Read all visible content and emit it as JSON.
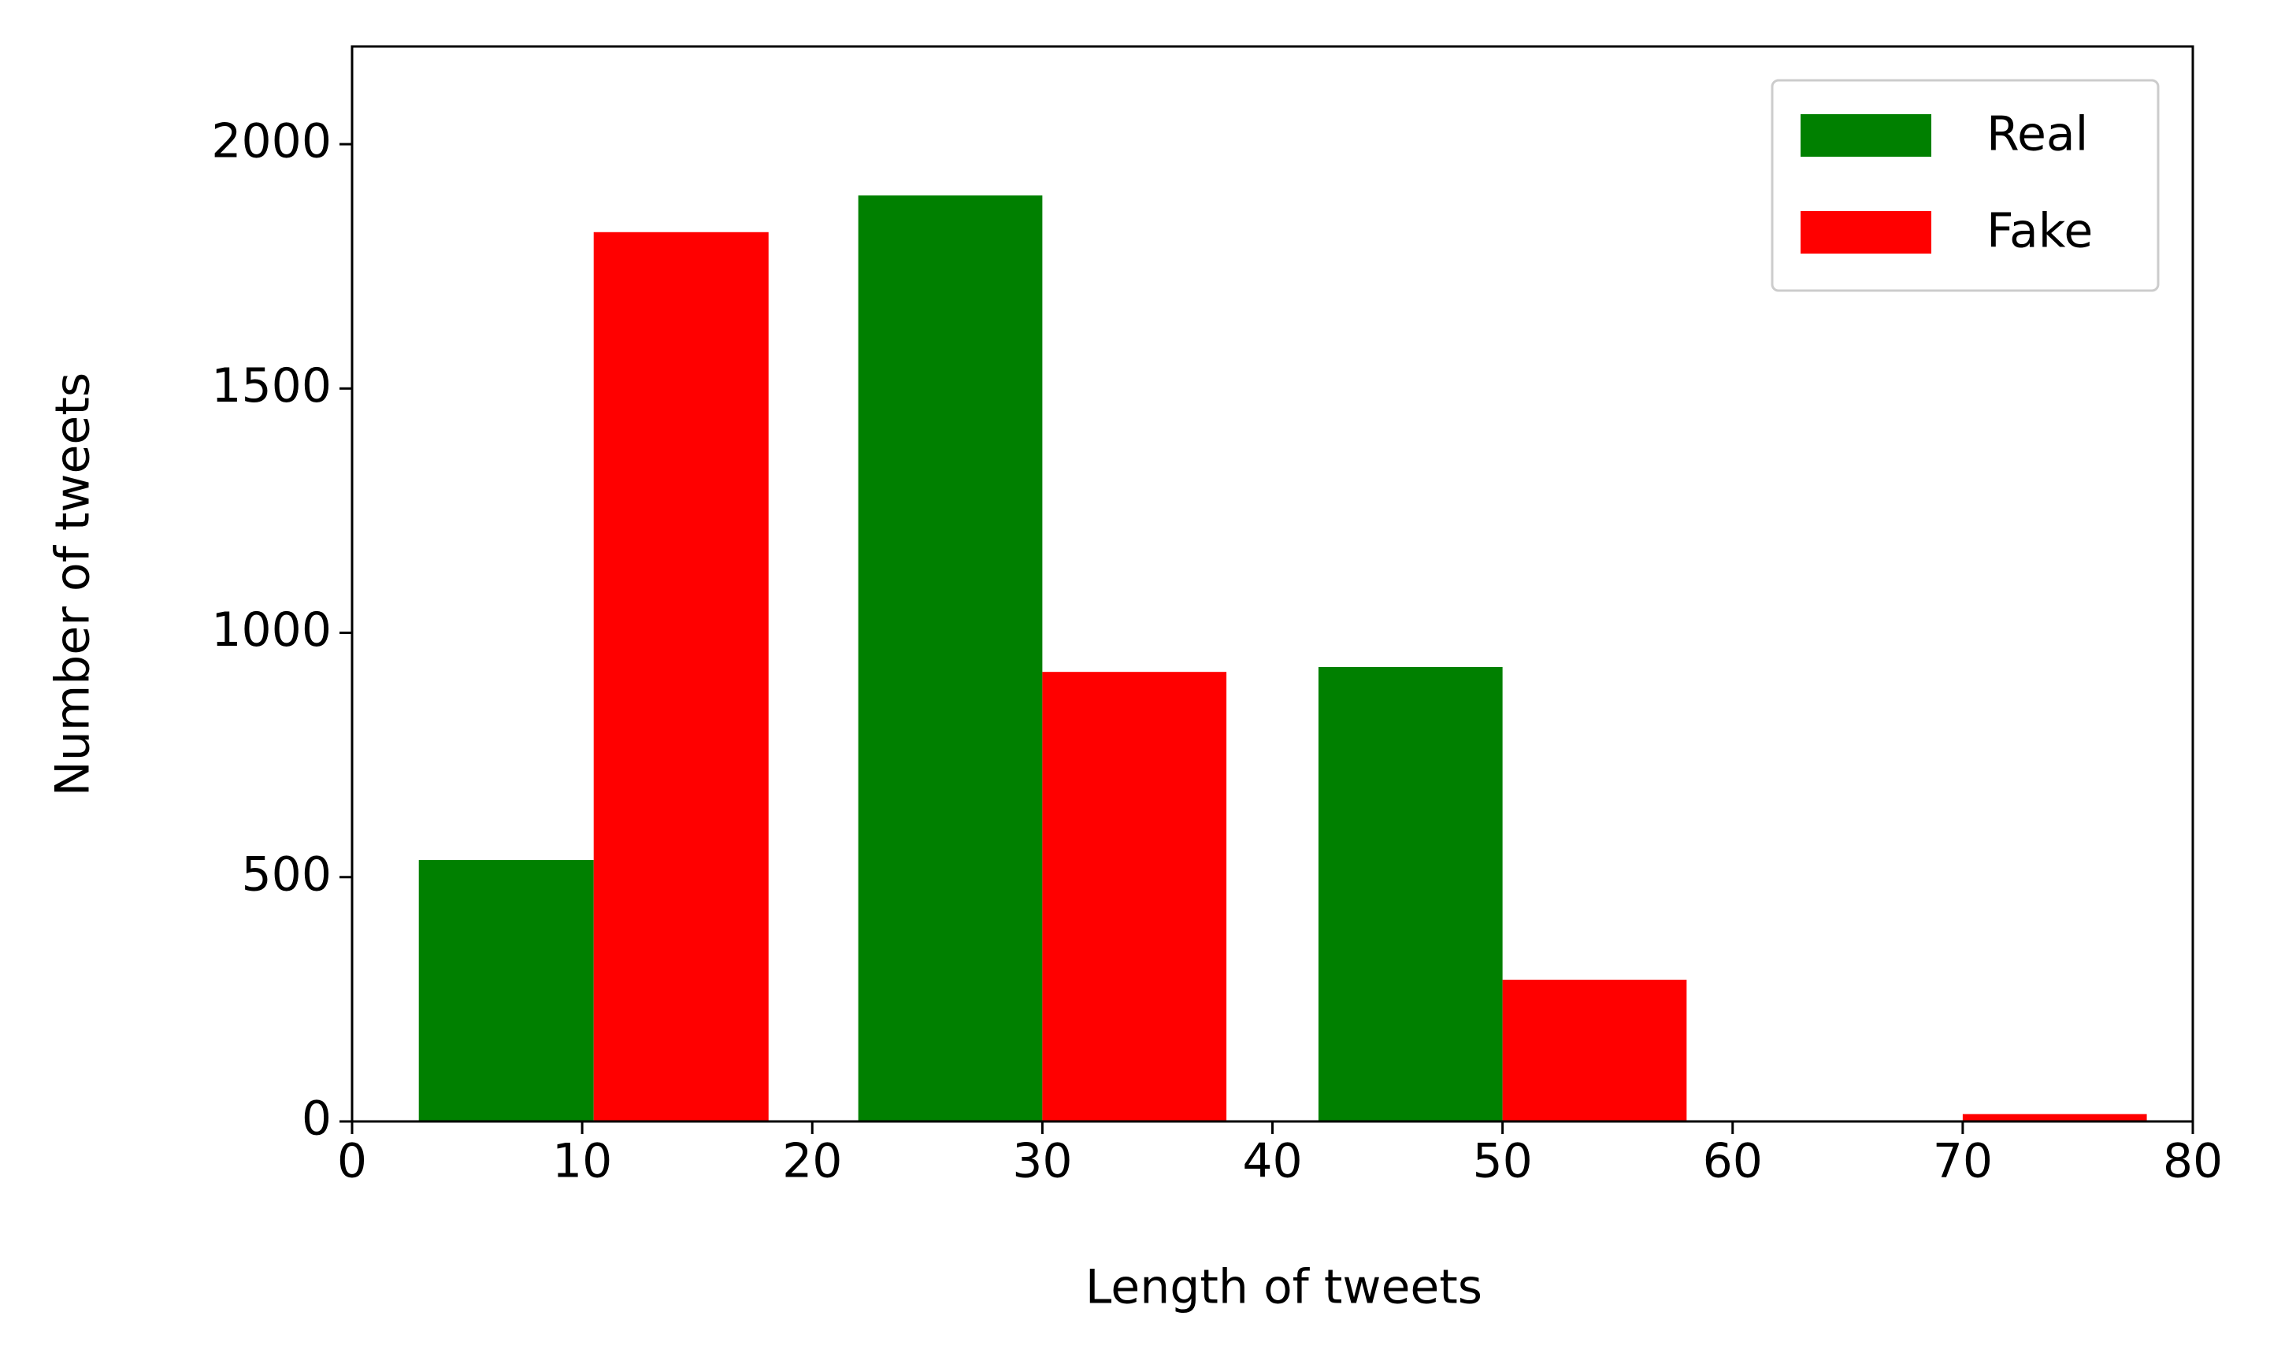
{
  "chart_data": {
    "type": "histogram",
    "xlabel": "Length of tweets",
    "ylabel": "Number of tweets",
    "bins": [
      1,
      20,
      40,
      60,
      80
    ],
    "series": [
      {
        "name": "Real",
        "color": "#008000",
        "values": [
          535,
          1895,
          930,
          0
        ]
      },
      {
        "name": "Fake",
        "color": "#ff0000",
        "values": [
          1820,
          920,
          290,
          15
        ]
      }
    ],
    "xlim": [
      0,
      80
    ],
    "xticks": [
      0,
      10,
      20,
      30,
      40,
      50,
      60,
      70,
      80
    ],
    "ylim": [
      0,
      2200
    ],
    "yticks": [
      0,
      500,
      1000,
      1500,
      2000
    ],
    "legend": "upper right"
  }
}
